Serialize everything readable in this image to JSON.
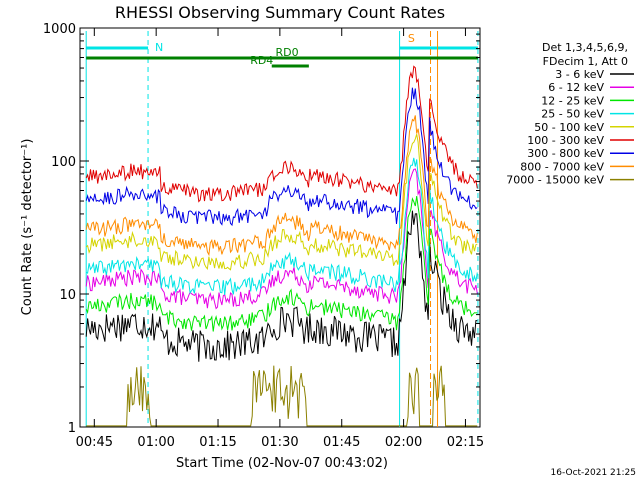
{
  "chart_data": {
    "type": "line",
    "title": "RHESSI Observing Summary Count Rates",
    "xlabel": "Start Time (02-Nov-07 00:43:02)",
    "ylabel": "Count Rate (s⁻¹ detector⁻¹)",
    "y_scale": "log",
    "ylim": [
      1,
      1000
    ],
    "xlim_minutes": [
      -1.5,
      95.5
    ],
    "x_ticks": [
      "00:45",
      "01:00",
      "01:15",
      "01:30",
      "01:45",
      "02:00",
      "02:15"
    ],
    "y_ticks": [
      "1",
      "10",
      "100",
      "1000"
    ],
    "legend_header": [
      "Det 1,3,4,5,6,9,",
      "FDecim 1, Att 0"
    ],
    "legend_position": "right",
    "timestamp": "16-Oct-2021 21:25",
    "annotations": {
      "night": {
        "label": "N",
        "start_min": 0,
        "end_min": 15,
        "color": "#00e5e5"
      },
      "saa": {
        "label": "S",
        "start_min": 76,
        "end_min": 95,
        "color": "#ff8c00"
      },
      "decimation": [
        {
          "label": "RD0",
          "start_min": 0,
          "end_min": 95,
          "color": "#008000"
        },
        {
          "label": "RD4",
          "start_min": 45,
          "end_min": 54,
          "color": "#008000"
        }
      ]
    },
    "series": [
      {
        "name": "3 - 6 keV",
        "color": "#000000"
      },
      {
        "name": "6 - 12 keV",
        "color": "#e600e6"
      },
      {
        "name": "12 - 25 keV",
        "color": "#00e600"
      },
      {
        "name": "25 - 50 keV",
        "color": "#00e5e5"
      },
      {
        "name": "50 - 100 keV",
        "color": "#d4d400"
      },
      {
        "name": "100 - 300 keV",
        "color": "#e00000"
      },
      {
        "name": "300 - 800 keV",
        "color": "#0000e6"
      },
      {
        "name": "800 - 7000 keV",
        "color": "#ff8c00"
      },
      {
        "name": "7000 - 15000 keV",
        "color": "#8b8000"
      }
    ]
  }
}
